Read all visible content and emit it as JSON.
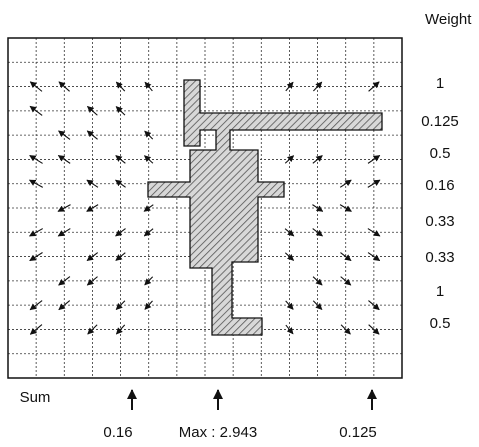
{
  "weight_title": "Weight",
  "weights": [
    "1",
    "0.125",
    "0.5",
    "0.16",
    "0.33",
    "0.33",
    "1",
    "0.5"
  ],
  "sum_label": "Sum",
  "bottom_labels": [
    "0.16",
    "Max : 2.943",
    "0.125"
  ]
}
